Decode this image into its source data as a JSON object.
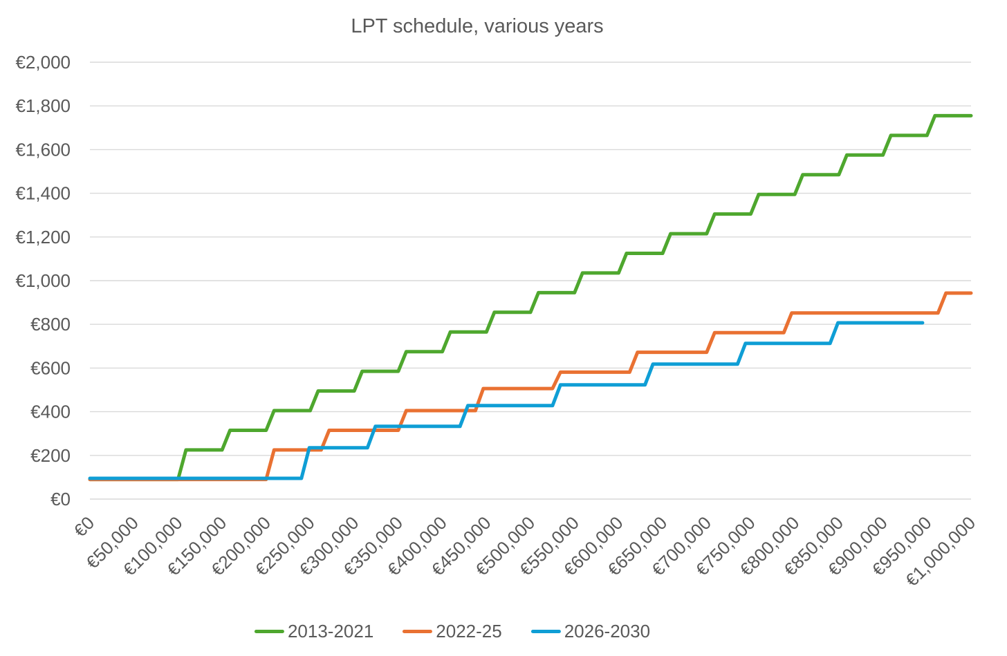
{
  "colors": {
    "grid": "#D9D9D9",
    "text": "#595959",
    "background": "#FFFFFF"
  },
  "chart_data": {
    "type": "line",
    "subtype": "step",
    "title": "LPT schedule, various years",
    "xlabel": "",
    "ylabel": "",
    "grid": "horizontal-only",
    "legend_position": "bottom",
    "x_axis": {
      "min": 0,
      "max": 1000000,
      "tick_step": 50000,
      "tick_labels": [
        "€0",
        "€50,000",
        "€100,000",
        "€150,000",
        "€200,000",
        "€250,000",
        "€300,000",
        "€350,000",
        "€400,000",
        "€450,000",
        "€500,000",
        "€550,000",
        "€600,000",
        "€650,000",
        "€700,000",
        "€750,000",
        "€800,000",
        "€850,000",
        "€900,000",
        "€950,000",
        "€1,000,000"
      ]
    },
    "y_axis": {
      "min": 0,
      "max": 2000,
      "tick_step": 200,
      "tick_labels": [
        "€0",
        "€200",
        "€400",
        "€600",
        "€800",
        "€1,000",
        "€1,200",
        "€1,400",
        "€1,600",
        "€1,800",
        "€2,000"
      ]
    },
    "series": [
      {
        "name": "2013-2021",
        "color": "#4EA72E",
        "steps": [
          [
            0,
            90
          ],
          [
            100000,
            225
          ],
          [
            150000,
            315
          ],
          [
            200000,
            405
          ],
          [
            250000,
            495
          ],
          [
            300000,
            585
          ],
          [
            350000,
            675
          ],
          [
            400000,
            765
          ],
          [
            450000,
            855
          ],
          [
            500000,
            945
          ],
          [
            550000,
            1035
          ],
          [
            600000,
            1125
          ],
          [
            650000,
            1215
          ],
          [
            700000,
            1305
          ],
          [
            750000,
            1395
          ],
          [
            800000,
            1485
          ],
          [
            850000,
            1575
          ],
          [
            900000,
            1665
          ],
          [
            950000,
            1755
          ]
        ],
        "end_x": 1000000
      },
      {
        "name": "2022-25",
        "color": "#E97132",
        "steps": [
          [
            0,
            90
          ],
          [
            200000,
            225
          ],
          [
            262500,
            315
          ],
          [
            350000,
            405
          ],
          [
            437500,
            506
          ],
          [
            525000,
            581
          ],
          [
            612500,
            672
          ],
          [
            700000,
            762
          ],
          [
            787500,
            852
          ],
          [
            962500,
            943
          ]
        ],
        "end_x": 1000000
      },
      {
        "name": "2026-2030",
        "color": "#0F9ED5",
        "steps": [
          [
            0,
            95
          ],
          [
            240000,
            235
          ],
          [
            315000,
            333
          ],
          [
            420000,
            428
          ],
          [
            525000,
            523
          ],
          [
            630000,
            618
          ],
          [
            735000,
            713
          ],
          [
            840000,
            807
          ]
        ],
        "end_x": 945000
      }
    ]
  }
}
